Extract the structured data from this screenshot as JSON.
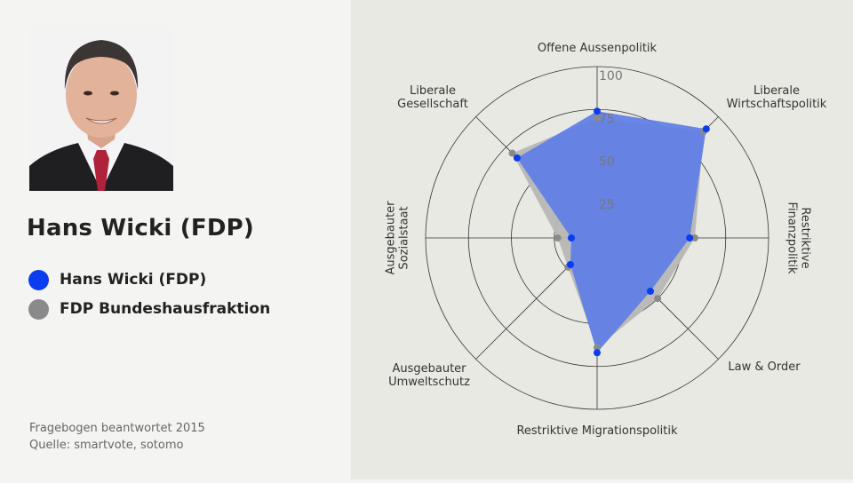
{
  "person": {
    "name": "Hans Wicki (FDP)"
  },
  "legend": [
    {
      "label": "Hans Wicki (FDP)",
      "color": "#0a3cf0"
    },
    {
      "label": "FDP Bundeshausfraktion",
      "color": "#8a8a8a"
    }
  ],
  "footnotes": {
    "line1": "Fragebogen beantwortet 2015",
    "line2": "Quelle: smartvote, sotomo"
  },
  "chart_data": {
    "type": "radar",
    "range": [
      0,
      100
    ],
    "ticks": [
      "25",
      "50",
      "75",
      "100"
    ],
    "axes": [
      [
        "Offene Aussenpolitik"
      ],
      [
        "Liberale",
        "Wirtschaftspolitik"
      ],
      [
        "Restriktive",
        "Finanzpolitik"
      ],
      [
        "Law & Order"
      ],
      [
        "Restriktive Migrationspolitik"
      ],
      [
        "Ausgebauter",
        "Umweltschutz"
      ],
      [
        "Ausgebauter",
        "Sozialstaat"
      ],
      [
        "Liberale",
        "Gesellschaft"
      ]
    ],
    "series": [
      {
        "name": "Hans Wicki (FDP)",
        "color": "#0a3cf0",
        "fill": "#5e7de6",
        "values": [
          74,
          90,
          54,
          44,
          67,
          22,
          15,
          66
        ]
      },
      {
        "name": "FDP Bundeshausfraktion",
        "color": "#8a8a8a",
        "fill": "#b7b7b5",
        "values": [
          70,
          88,
          57,
          50,
          64,
          24,
          23,
          70
        ]
      }
    ]
  }
}
